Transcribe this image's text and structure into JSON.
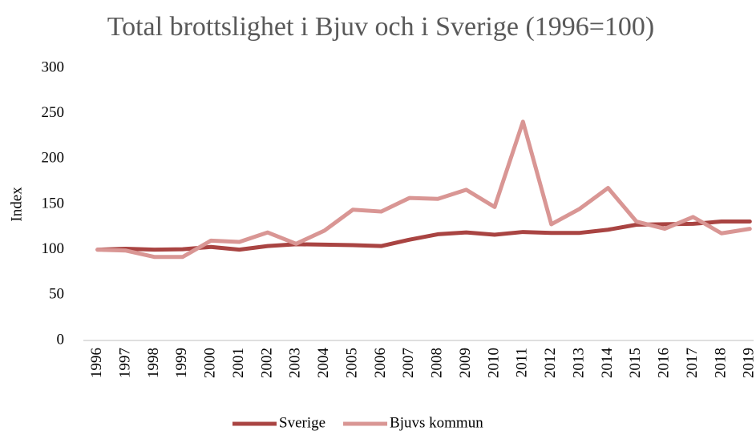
{
  "chart_data": {
    "type": "line",
    "title": "Total brottslighet i Bjuv och i Sverige (1996=100)",
    "y_label": "Index",
    "categories": [
      "1996",
      "1997",
      "1998",
      "1999",
      "2000",
      "2001",
      "2002",
      "2003",
      "2004",
      "2005",
      "2006",
      "2007",
      "2008",
      "2009",
      "2010",
      "2011",
      "2012",
      "2013",
      "2014",
      "2015",
      "2016",
      "2017",
      "2018",
      "2019"
    ],
    "series": [
      {
        "name": "Sverige",
        "color": "#a94442",
        "values": [
          100,
          101,
          100,
          100.5,
          103,
          100,
          104,
          106,
          105.5,
          105,
          104,
          111,
          117,
          119,
          116.5,
          119.5,
          118.5,
          118.5,
          122,
          127.5,
          128,
          128.5,
          131,
          131
        ]
      },
      {
        "name": "Bjuvs kommun",
        "color": "#d99694",
        "values": [
          100,
          99,
          92,
          92,
          110,
          108.5,
          119,
          106.5,
          121,
          144,
          142,
          157,
          156,
          166,
          147,
          241,
          128,
          145,
          168,
          131,
          123,
          136,
          118,
          123
        ]
      }
    ],
    "ylim": [
      0,
      300
    ],
    "yticks": [
      0,
      50,
      100,
      150,
      200,
      250,
      300
    ],
    "grid": false,
    "legend": "bottom"
  }
}
